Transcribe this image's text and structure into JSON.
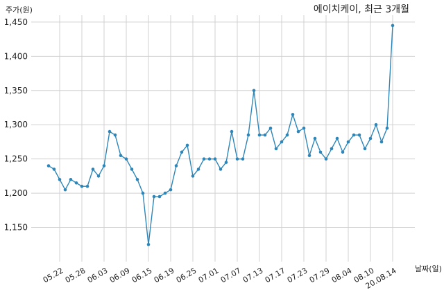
{
  "chart_data": {
    "type": "line",
    "title": "에이치케이, 최근 3개월",
    "ylabel": "주가(원)",
    "xlabel": "날짜(일)",
    "ylim": [
      1100,
      1460
    ],
    "y_ticks": [
      1150,
      1200,
      1250,
      1300,
      1350,
      1400,
      1450
    ],
    "y_tick_labels": [
      "1,150",
      "1,200",
      "1,250",
      "1,300",
      "1,350",
      "1,400",
      "1,450"
    ],
    "grid": true,
    "x_tick_labels": [
      "05.22",
      "05.28",
      "06.03",
      "06.09",
      "06.15",
      "06.19",
      "06.25",
      "07.01",
      "07.07",
      "07.13",
      "07.17",
      "07.23",
      "07.29",
      "08.04",
      "08.10",
      "20.08.14"
    ],
    "x_tick_indices": [
      2,
      6,
      10,
      14,
      18,
      22,
      26,
      30,
      34,
      38,
      42,
      46,
      50,
      54,
      58,
      62
    ],
    "series": [
      {
        "color": "#2e86b8",
        "values": [
          1240,
          1235,
          1220,
          1205,
          1220,
          1215,
          1210,
          1210,
          1235,
          1225,
          1240,
          1290,
          1285,
          1255,
          1250,
          1235,
          1220,
          1200,
          1125,
          1195,
          1195,
          1200,
          1205,
          1240,
          1260,
          1270,
          1225,
          1235,
          1250,
          1250,
          1250,
          1235,
          1245,
          1290,
          1250,
          1250,
          1285,
          1350,
          1285,
          1285,
          1295,
          1265,
          1275,
          1285,
          1315,
          1290,
          1295,
          1255,
          1280,
          1260,
          1250,
          1265,
          1280,
          1260,
          1275,
          1285,
          1285,
          1265,
          1280,
          1300,
          1275,
          1295,
          1445
        ]
      }
    ]
  }
}
